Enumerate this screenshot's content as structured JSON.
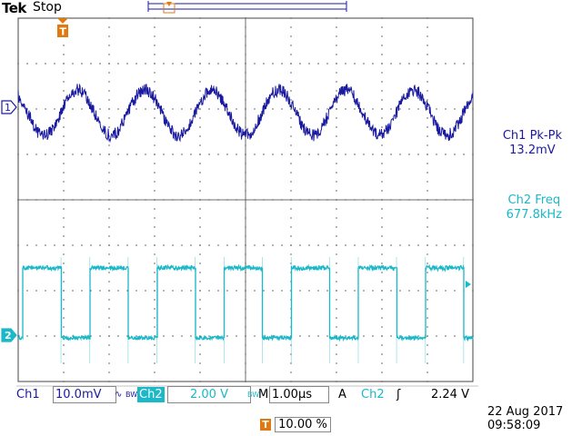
{
  "header": {
    "brand": "Tek",
    "acq_state": "Stop"
  },
  "channels": {
    "ch1": {
      "marker": "1",
      "color": "#1a1aa0"
    },
    "ch2": {
      "marker": "2",
      "color": "#1ab8c8"
    }
  },
  "trigger_marker": "T",
  "measurements": {
    "ch1": {
      "title": "Ch1 Pk-Pk",
      "value": "13.2mV"
    },
    "ch2": {
      "title": "Ch2 Freq",
      "value": "677.8kHz"
    }
  },
  "status": {
    "ch1_label": "Ch1",
    "ch1_scale": "10.0mV",
    "ch1_coupling_icon": "ac-coupling-icon",
    "ch1_bw": "BW",
    "ch2_label": "Ch2",
    "ch2_scale": "2.00 V",
    "ch2_bw": "BW",
    "timebase_label": "M",
    "timebase": "1.00µs",
    "trigger_mode": "A",
    "trigger_source": "Ch2",
    "trigger_slope_icon": "rising-edge-icon",
    "trigger_level": "2.24 V",
    "date": "22 Aug 2017",
    "time": "09:58:09",
    "position_marker": "T",
    "position": "10.00 %"
  },
  "colors": {
    "graticule": "#333333",
    "ch1": "#1a1aa0",
    "ch2": "#1ab8c8",
    "trigger": "#e07a10"
  }
}
